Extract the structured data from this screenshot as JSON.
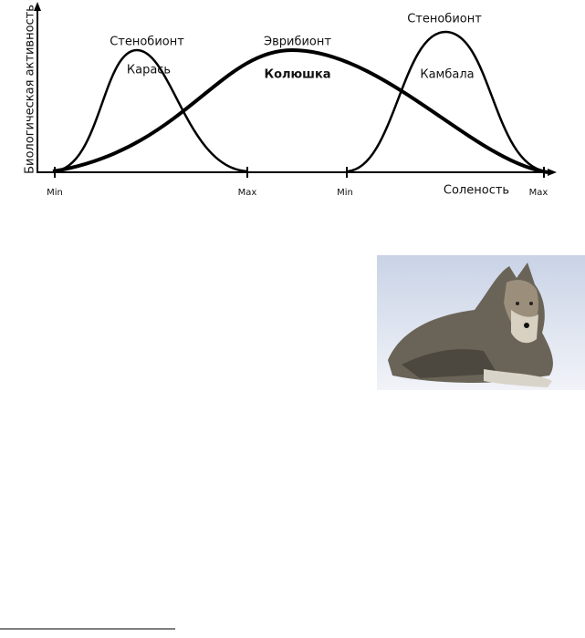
{
  "figure": {
    "y_axis_label": "Биологическая активность",
    "x_axis_label": "Соленость",
    "curves": [
      {
        "type": "Стенобионт",
        "species": "Карась"
      },
      {
        "type": "Эврибионт",
        "species": "Колюшка"
      },
      {
        "type": "Стенобионт",
        "species": "Камбала"
      }
    ],
    "x_ticks": [
      "Min",
      "Max",
      "Min",
      "Max"
    ]
  }
}
